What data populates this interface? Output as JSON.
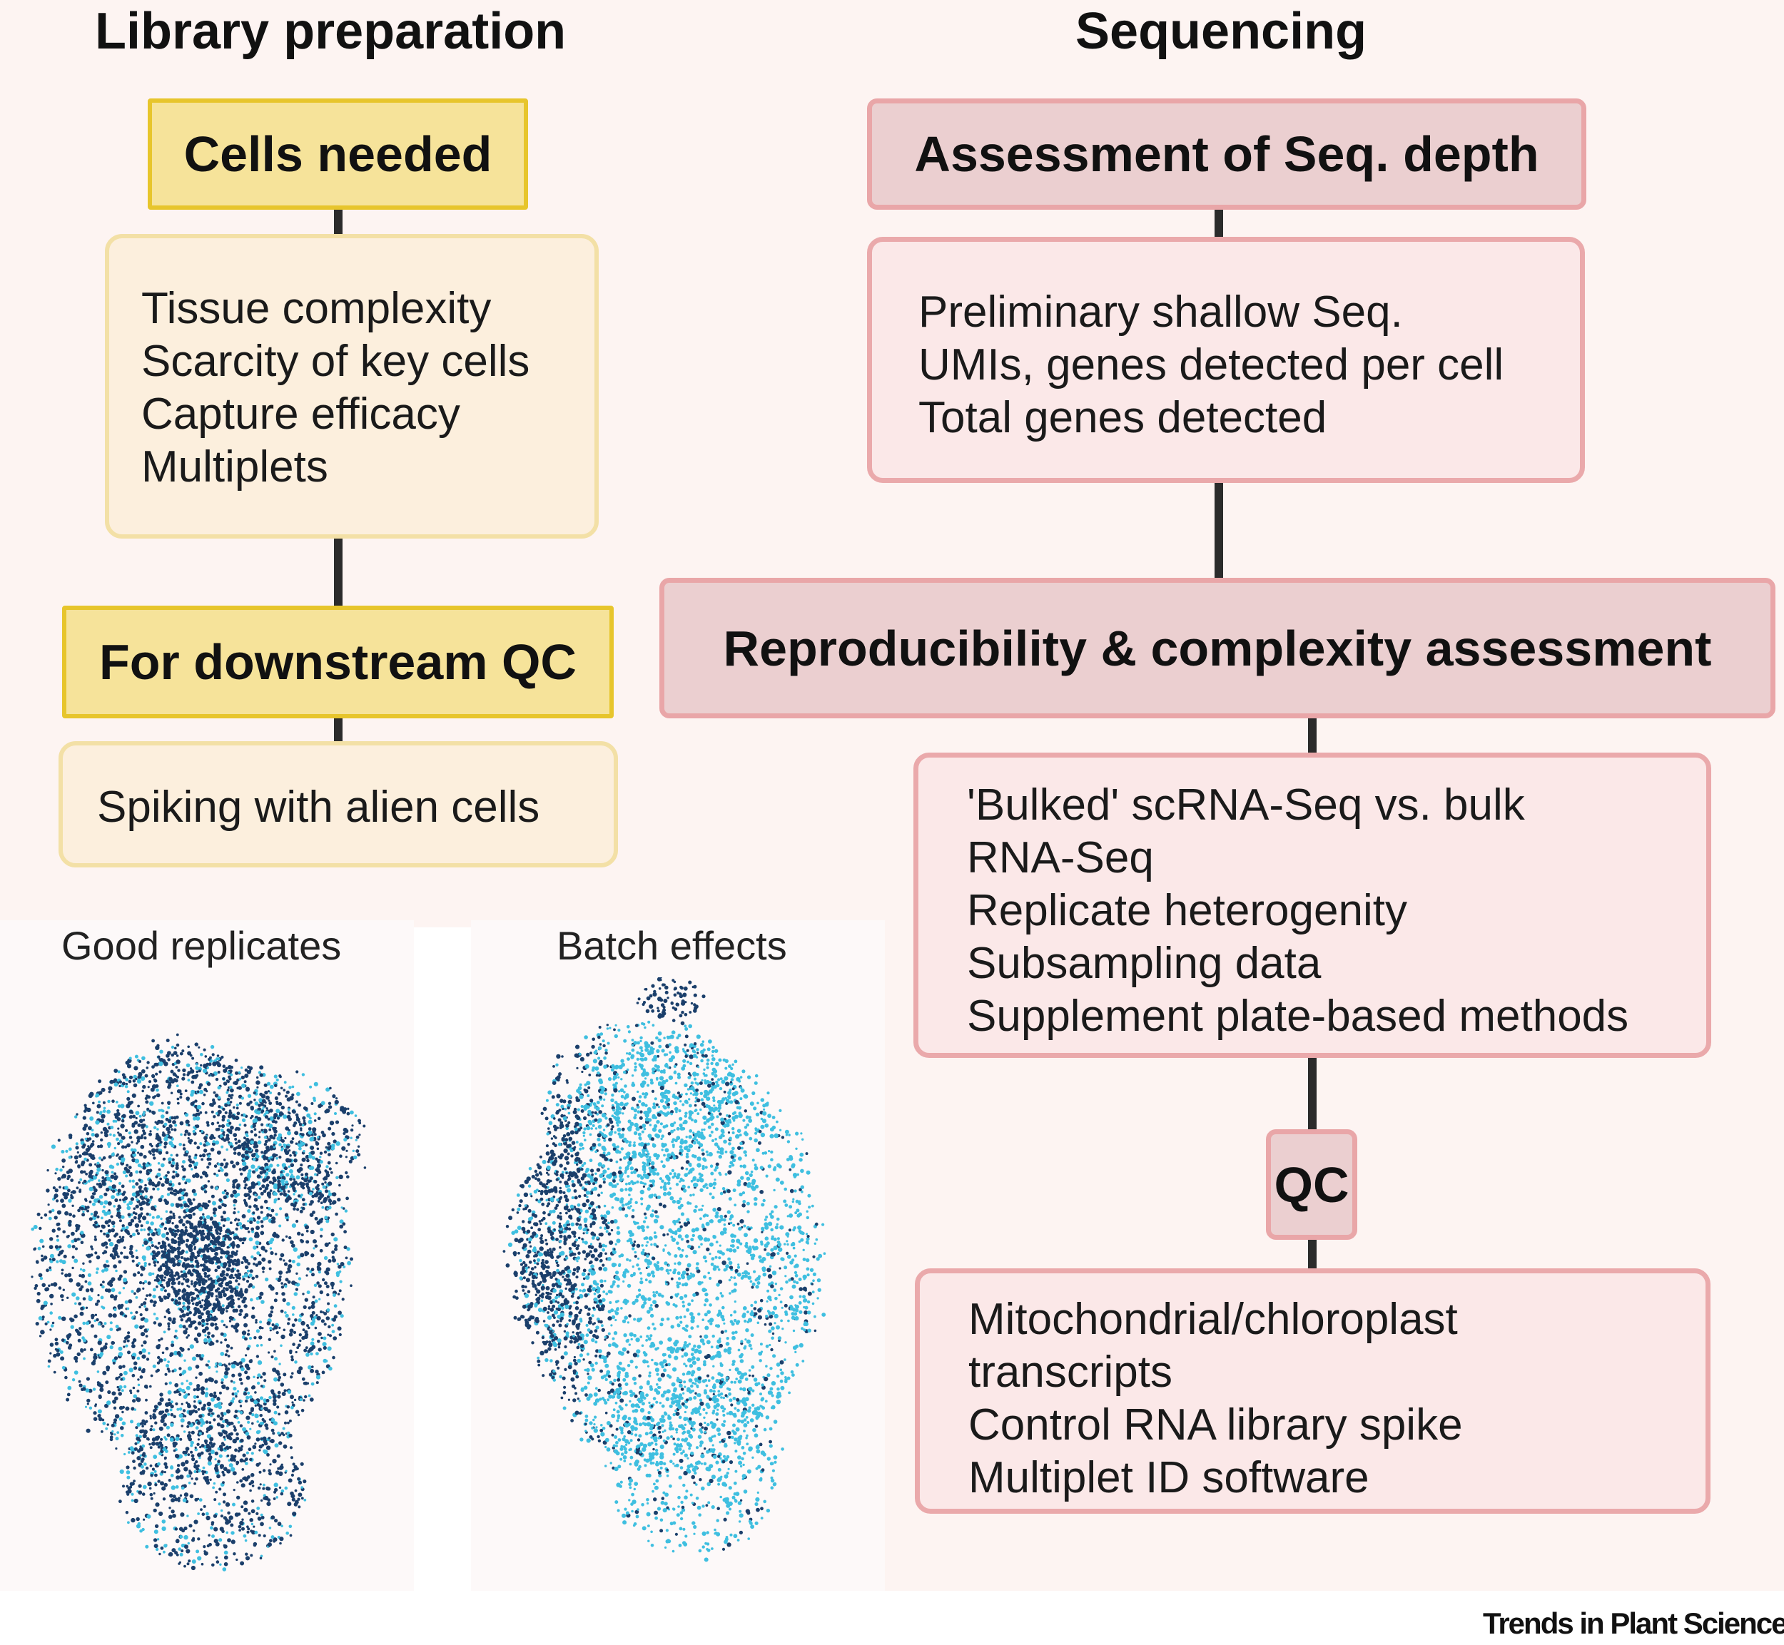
{
  "columns": {
    "library_preparation": "Library preparation",
    "sequencing": "Sequencing"
  },
  "library": {
    "cells_needed": {
      "title": "Cells needed",
      "items": [
        "Tissue complexity",
        "Scarcity of key cells",
        "Capture efficacy",
        "Multiplets"
      ]
    },
    "downstream_qc": {
      "title": "For downstream QC",
      "items": [
        "Spiking with alien cells"
      ]
    }
  },
  "sequencing": {
    "seq_depth": {
      "title": "Assessment of Seq. depth",
      "items": [
        "Preliminary shallow Seq.",
        "UMIs, genes detected per cell",
        "Total genes detected"
      ]
    },
    "reproducibility": {
      "title": "Reproducibility & complexity assessment",
      "items": [
        "'Bulked' scRNA-Seq vs. bulk",
        "RNA-Seq",
        "Replicate heterogenity",
        "Subsampling data",
        "Supplement plate-based methods"
      ]
    },
    "qc": {
      "title": "QC",
      "items": [
        "Mitochondrial/chloroplast",
        "transcripts",
        "Control RNA library spike",
        "Multiplet ID software"
      ]
    }
  },
  "plots": {
    "good": {
      "label": "Good replicates"
    },
    "batch": {
      "label": "Batch effects"
    }
  },
  "colors": {
    "dark_cells": "#1b3f6b",
    "light_cells": "#3fbfe0"
  },
  "credit": "Trends in Plant Science"
}
